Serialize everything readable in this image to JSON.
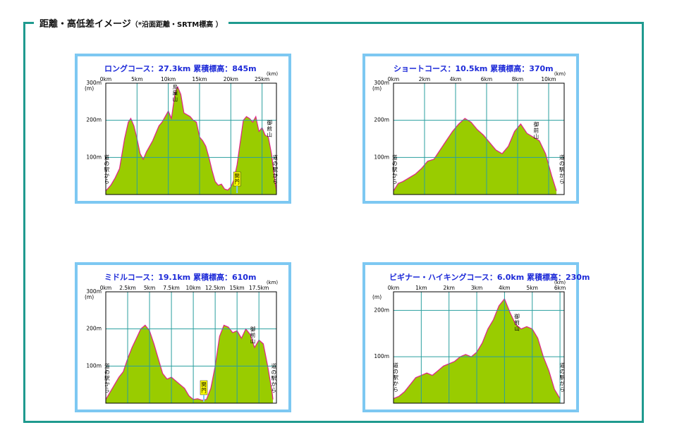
{
  "header": {
    "title": "距離・高低差イメージ",
    "note": "（*沿面距離・SRTM標高 ）"
  },
  "colors": {
    "frame": "#1f9a8f",
    "panel_border": "#7dc8f2",
    "profile_fill": "#99cc00",
    "profile_line": "#e0208a",
    "grid": "#2a9f9f",
    "title_text": "#1d2ad8",
    "marker_fill": "#ffff00"
  },
  "chart_data": [
    {
      "type": "area",
      "title": "ロングコース：27.3km  累積標高：845m",
      "xunit": "(km)",
      "yunit": "(m)",
      "xlim": [
        0,
        27.3
      ],
      "ylim": [
        0,
        300
      ],
      "xticks": [
        {
          "value": 0,
          "label": "0km"
        },
        {
          "value": 5,
          "label": "5km"
        },
        {
          "value": 10,
          "label": "10km"
        },
        {
          "value": 15,
          "label": "15km"
        },
        {
          "value": 20,
          "label": "20km"
        },
        {
          "value": 25,
          "label": "25km"
        }
      ],
      "yticks": [
        {
          "value": 100,
          "label": "100m"
        },
        {
          "value": 200,
          "label": "200m"
        },
        {
          "value": 300,
          "label": "300m"
        }
      ],
      "x": [
        0,
        0.8,
        1.5,
        2.2,
        3,
        3.6,
        4,
        4.5,
        5,
        5.5,
        6,
        6.5,
        7,
        7.5,
        8,
        8.5,
        9,
        9.5,
        10,
        10.5,
        11,
        11.2,
        11.5,
        12,
        12.5,
        13,
        13.5,
        14,
        14.5,
        15,
        15.5,
        16,
        16.5,
        17,
        17.5,
        18,
        18.5,
        19,
        19.5,
        20,
        20.5,
        21,
        21.5,
        22,
        22.5,
        23,
        23.5,
        24,
        24.5,
        25,
        25.5,
        26,
        26.5,
        27,
        27.3
      ],
      "y": [
        10,
        25,
        45,
        70,
        150,
        195,
        205,
        185,
        150,
        110,
        95,
        115,
        130,
        145,
        165,
        185,
        195,
        210,
        225,
        205,
        265,
        280,
        290,
        270,
        220,
        215,
        210,
        200,
        195,
        155,
        145,
        130,
        100,
        65,
        35,
        25,
        28,
        15,
        12,
        20,
        40,
        80,
        140,
        200,
        210,
        205,
        195,
        210,
        170,
        180,
        160,
        155,
        110,
        45,
        10
      ],
      "annotations": [
        {
          "text": "道の駅　から",
          "x": 0.15,
          "y": 55
        },
        {
          "text": "鳥屋山",
          "x": 11.1,
          "y": 290
        },
        {
          "text": "御前山",
          "x": 26.2,
          "y": 165
        },
        {
          "text": "道の駅　から",
          "x": 27.1,
          "y": 55
        }
      ],
      "marker": {
        "text": "関門",
        "x": 21.0,
        "y": 10
      }
    },
    {
      "type": "area",
      "title": "ショートコース：10.5km  累積標高：370m",
      "xunit": "(km)",
      "yunit": "(m)",
      "xlim": [
        0,
        11
      ],
      "ylim": [
        0,
        300
      ],
      "xticks": [
        {
          "value": 0,
          "label": "0km"
        },
        {
          "value": 2,
          "label": "2km"
        },
        {
          "value": 4,
          "label": "4km"
        },
        {
          "value": 6,
          "label": "6km"
        },
        {
          "value": 8,
          "label": "8km"
        },
        {
          "value": 10,
          "label": "10km"
        }
      ],
      "yticks": [
        {
          "value": 100,
          "label": "100m"
        },
        {
          "value": 200,
          "label": "200m"
        },
        {
          "value": 300,
          "label": "300m"
        }
      ],
      "x": [
        0,
        0.3,
        0.6,
        1,
        1.4,
        1.8,
        2.2,
        2.6,
        3,
        3.4,
        3.8,
        4.2,
        4.6,
        5,
        5.4,
        5.8,
        6.2,
        6.6,
        7,
        7.4,
        7.8,
        8.2,
        8.6,
        9,
        9.4,
        9.8,
        10.2,
        10.5
      ],
      "y": [
        10,
        30,
        35,
        45,
        55,
        70,
        90,
        95,
        120,
        145,
        170,
        190,
        205,
        195,
        175,
        160,
        140,
        120,
        110,
        130,
        170,
        190,
        165,
        155,
        145,
        110,
        50,
        10
      ],
      "annotations": [
        {
          "text": "道の駅　から",
          "x": 0.08,
          "y": 55
        },
        {
          "text": "御前山",
          "x": 9.2,
          "y": 160
        },
        {
          "text": "道の駅　から",
          "x": 10.85,
          "y": 55
        }
      ]
    },
    {
      "type": "area",
      "title": "ミドルコース：19.1km  累積標高：610m",
      "xunit": "(km)",
      "yunit": "(m)",
      "xlim": [
        0,
        19.5
      ],
      "ylim": [
        0,
        300
      ],
      "xticks": [
        {
          "value": 0,
          "label": "0km"
        },
        {
          "value": 2.5,
          "label": "2.5km"
        },
        {
          "value": 5,
          "label": "5km"
        },
        {
          "value": 7.5,
          "label": "7.5km"
        },
        {
          "value": 10,
          "label": "10km"
        },
        {
          "value": 12.5,
          "label": "12.5km"
        },
        {
          "value": 15,
          "label": "15km"
        },
        {
          "value": 17.5,
          "label": "17.5km"
        }
      ],
      "yticks": [
        {
          "value": 100,
          "label": "100m"
        },
        {
          "value": 200,
          "label": "200m"
        },
        {
          "value": 300,
          "label": "300m"
        }
      ],
      "x": [
        0,
        0.5,
        1,
        1.5,
        2,
        2.5,
        3,
        3.5,
        4,
        4.5,
        5,
        5.5,
        6,
        6.5,
        7,
        7.5,
        8,
        8.5,
        9,
        9.5,
        10,
        10.5,
        11,
        11.5,
        12,
        12.5,
        13,
        13.5,
        14,
        14.5,
        15,
        15.5,
        16,
        16.5,
        17,
        17.5,
        18,
        18.5,
        19,
        19.1
      ],
      "y": [
        10,
        30,
        50,
        70,
        85,
        120,
        150,
        175,
        200,
        210,
        195,
        160,
        120,
        80,
        65,
        70,
        60,
        50,
        40,
        20,
        10,
        12,
        8,
        10,
        40,
        100,
        180,
        210,
        205,
        190,
        195,
        175,
        200,
        185,
        150,
        170,
        160,
        100,
        30,
        10
      ],
      "annotations": [
        {
          "text": "道の駅　から",
          "x": 0.15,
          "y": 55
        },
        {
          "text": "御前山",
          "x": 16.8,
          "y": 170
        },
        {
          "text": "道の駅　から",
          "x": 19.2,
          "y": 55
        }
      ],
      "marker": {
        "text": "関門",
        "x": 11.2,
        "y": 10
      }
    },
    {
      "type": "area",
      "title": "ビギナー・ハイキングコース：6.0km  累積標高：230m",
      "xunit": "(km)",
      "yunit": "(m)",
      "xlim": [
        0,
        6.15
      ],
      "ylim": [
        0,
        240
      ],
      "xticks": [
        {
          "value": 0,
          "label": "0km"
        },
        {
          "value": 1,
          "label": "1km"
        },
        {
          "value": 2,
          "label": "2km"
        },
        {
          "value": 3,
          "label": "3km"
        },
        {
          "value": 4,
          "label": "4km"
        },
        {
          "value": 5,
          "label": "5km"
        },
        {
          "value": 6,
          "label": "6km"
        }
      ],
      "yticks": [
        {
          "value": 100,
          "label": "100m"
        },
        {
          "value": 200,
          "label": "200m"
        }
      ],
      "x": [
        0,
        0.2,
        0.4,
        0.6,
        0.8,
        1,
        1.2,
        1.4,
        1.6,
        1.8,
        2,
        2.2,
        2.4,
        2.6,
        2.8,
        3,
        3.2,
        3.4,
        3.6,
        3.8,
        4,
        4.2,
        4.4,
        4.6,
        4.8,
        5,
        5.2,
        5.4,
        5.6,
        5.8,
        6
      ],
      "y": [
        10,
        15,
        25,
        40,
        55,
        60,
        65,
        60,
        70,
        80,
        85,
        90,
        100,
        105,
        100,
        110,
        130,
        160,
        180,
        210,
        225,
        195,
        170,
        160,
        165,
        160,
        140,
        100,
        70,
        30,
        10
      ],
      "annotations": [
        {
          "text": "道の駅　から",
          "x": 0.08,
          "y": 45
        },
        {
          "text": "御前山",
          "x": 4.45,
          "y": 180
        },
        {
          "text": "道の駅　から",
          "x": 6.08,
          "y": 45
        }
      ]
    }
  ]
}
